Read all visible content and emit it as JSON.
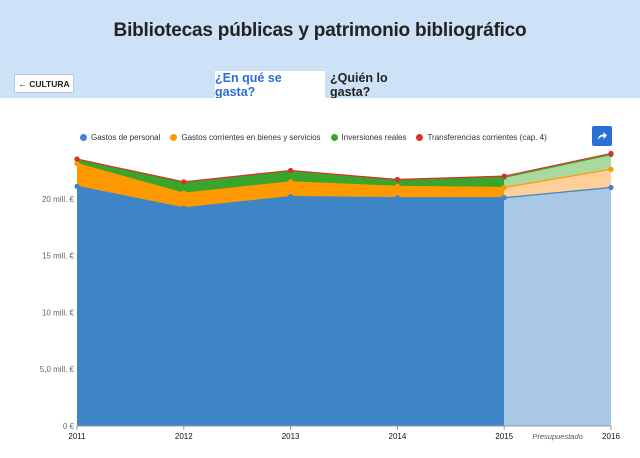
{
  "page": {
    "title": "Bibliotecas públicas y patrimonio bibliográfico",
    "back_label": "← CULTURA",
    "tabs": [
      {
        "label": "¿En qué se gasta?",
        "active": true
      },
      {
        "label": "¿Quién lo gasta?",
        "active": false
      }
    ],
    "share_icon": "share-arrow-icon"
  },
  "colors": {
    "header_bg": "#cde1f7",
    "accent": "#2a6fd6",
    "personal": "#3d85c6",
    "corrientes": "#ff9900",
    "inversiones": "#3aa52b",
    "transferencias": "#d9302c"
  },
  "chart_data": {
    "type": "area",
    "stacked": true,
    "x": [
      "2011",
      "2012",
      "2013",
      "2014",
      "2015",
      "2016"
    ],
    "series": [
      {
        "name": "Gastos de personal",
        "values": [
          21.1,
          19.2,
          20.2,
          20.1,
          20.1,
          21.0
        ]
      },
      {
        "name": "Gastos corrientes en bienes y servicios",
        "values": [
          2.0,
          1.3,
          1.3,
          1.0,
          0.9,
          1.6
        ]
      },
      {
        "name": "Inversiones reales",
        "values": [
          0.4,
          0.9,
          0.9,
          0.6,
          0.9,
          1.3
        ]
      },
      {
        "name": "Transferencias corrientes (cap. 4)",
        "values": [
          0.0,
          0.1,
          0.1,
          0.0,
          0.1,
          0.1
        ]
      }
    ],
    "yticks": [
      {
        "value": 0,
        "label": "0 €"
      },
      {
        "value": 5,
        "label": "5,0 mill. €"
      },
      {
        "value": 10,
        "label": "10 mill. €"
      },
      {
        "value": 15,
        "label": "15 mill. €"
      },
      {
        "value": 20,
        "label": "20 mill. €"
      }
    ],
    "ylim": [
      0,
      24.3
    ],
    "budget_start_index": 4,
    "budget_label": "Presupuestado",
    "legend": "top",
    "grid": true
  }
}
